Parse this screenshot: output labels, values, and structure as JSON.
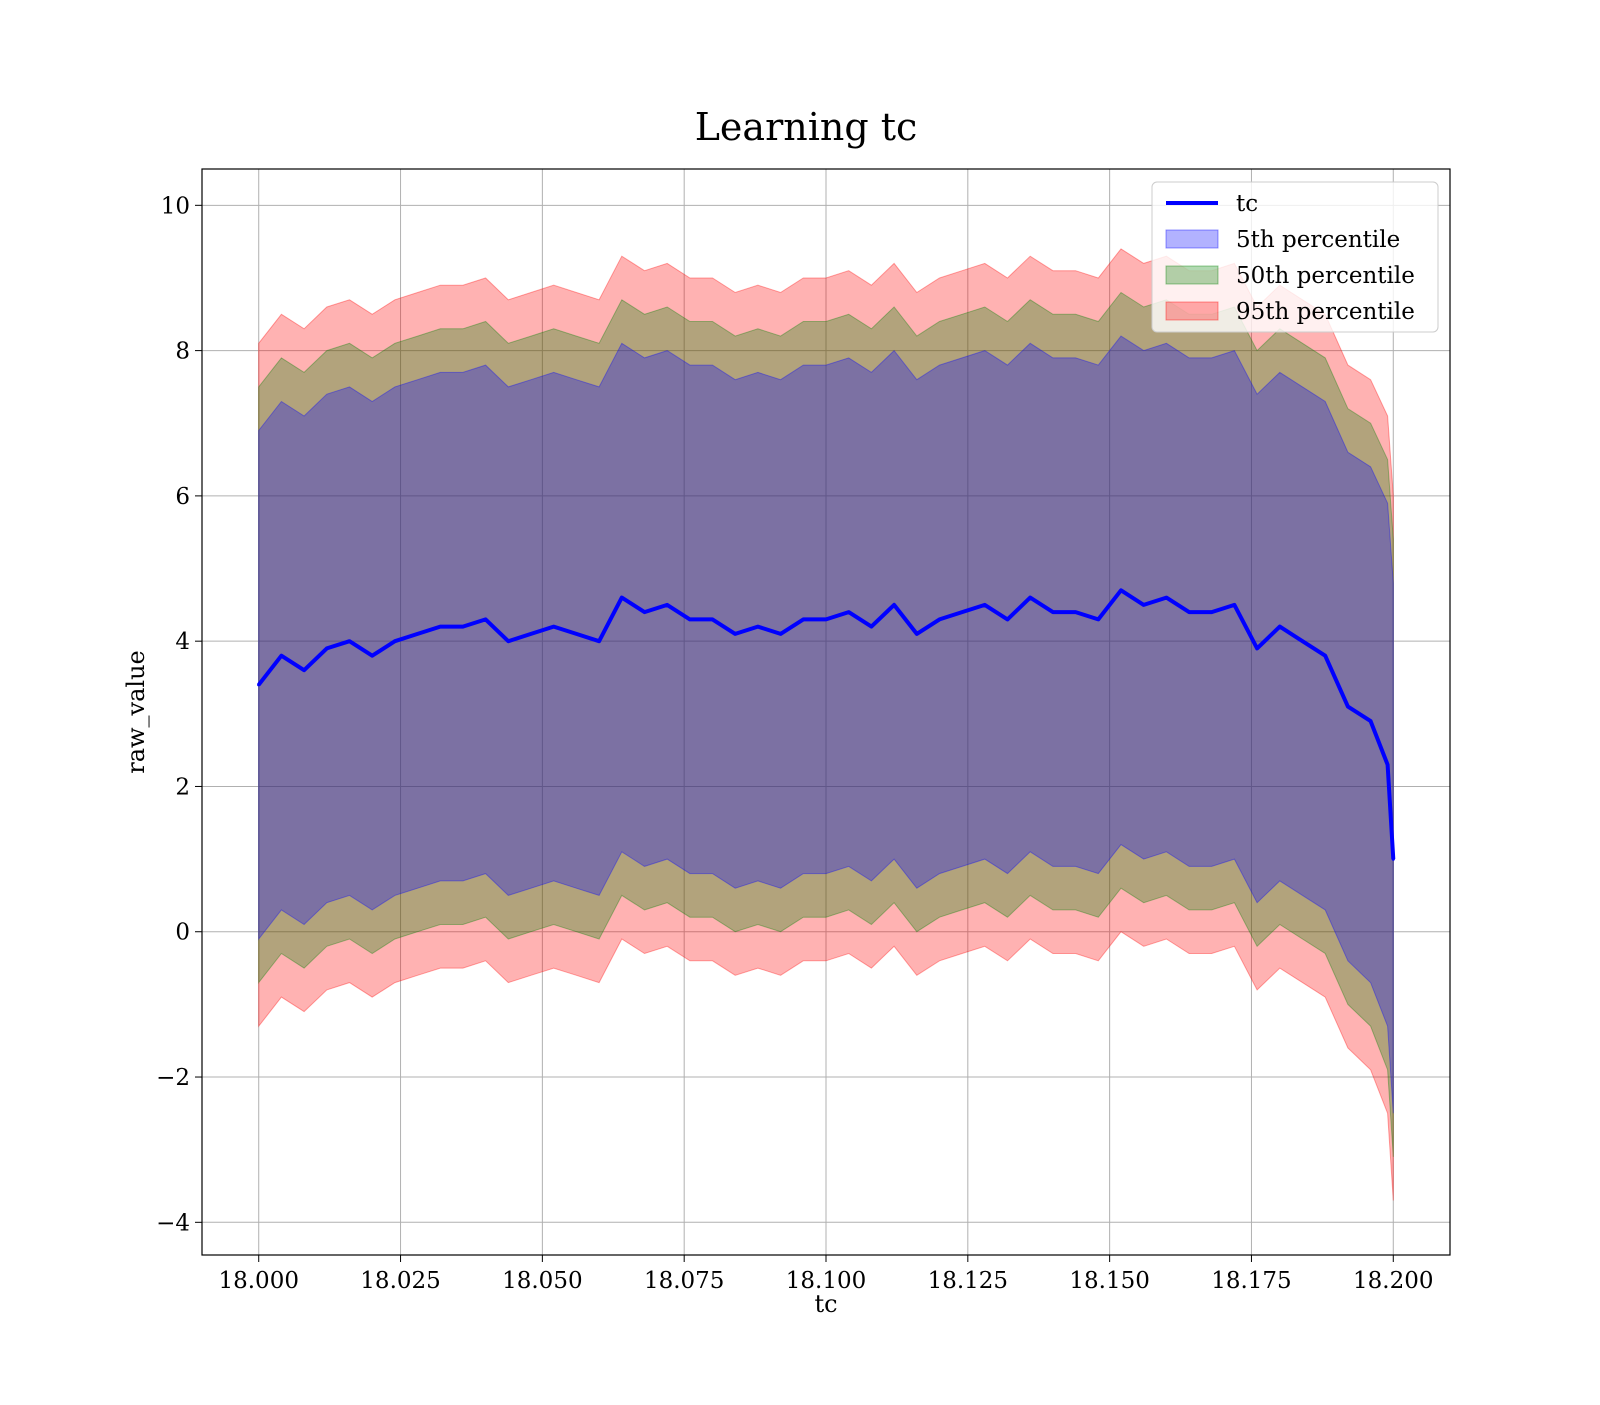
{
  "chart_data": {
    "type": "area",
    "title": "Learning tc",
    "xlabel": "tc",
    "ylabel": "raw_value",
    "xlim": [
      17.99,
      18.21
    ],
    "ylim": [
      -4.45,
      10.5
    ],
    "x_ticks": [
      18.0,
      18.025,
      18.05,
      18.075,
      18.1,
      18.125,
      18.15,
      18.175,
      18.2
    ],
    "x_tick_labels": [
      "18.000",
      "18.025",
      "18.050",
      "18.075",
      "18.100",
      "18.125",
      "18.150",
      "18.175",
      "18.200"
    ],
    "y_ticks": [
      -4,
      -2,
      0,
      2,
      4,
      6,
      8,
      10
    ],
    "y_tick_labels": [
      "−4",
      "−2",
      "0",
      "2",
      "4",
      "6",
      "8",
      "10"
    ],
    "grid": true,
    "legend_position": "top-right",
    "legend": [
      {
        "label": "tc",
        "kind": "line",
        "color": "#0000ff"
      },
      {
        "label": "5th percentile",
        "kind": "patch",
        "color": "#0000ff"
      },
      {
        "label": "50th percentile",
        "kind": "patch",
        "color": "#008000"
      },
      {
        "label": "95th percentile",
        "kind": "patch",
        "color": "#ff0000"
      }
    ],
    "x": [
      18.0,
      18.004,
      18.008,
      18.012,
      18.016,
      18.02,
      18.024,
      18.028,
      18.032,
      18.036,
      18.04,
      18.044,
      18.048,
      18.052,
      18.056,
      18.06,
      18.064,
      18.068,
      18.072,
      18.076,
      18.08,
      18.084,
      18.088,
      18.092,
      18.096,
      18.1,
      18.104,
      18.108,
      18.112,
      18.116,
      18.12,
      18.124,
      18.128,
      18.132,
      18.136,
      18.14,
      18.144,
      18.148,
      18.152,
      18.156,
      18.16,
      18.164,
      18.168,
      18.172,
      18.176,
      18.18,
      18.184,
      18.188,
      18.192,
      18.196,
      18.199,
      18.2
    ],
    "series": [
      {
        "name": "tc",
        "color": "#0000ff",
        "values": [
          3.4,
          3.8,
          3.6,
          3.9,
          4.0,
          3.8,
          4.0,
          4.1,
          4.2,
          4.2,
          4.3,
          4.0,
          4.1,
          4.2,
          4.1,
          4.0,
          4.6,
          4.4,
          4.5,
          4.3,
          4.3,
          4.1,
          4.2,
          4.1,
          4.3,
          4.3,
          4.4,
          4.2,
          4.5,
          4.1,
          4.3,
          4.4,
          4.5,
          4.3,
          4.6,
          4.4,
          4.4,
          4.3,
          4.7,
          4.5,
          4.6,
          4.4,
          4.4,
          4.5,
          3.9,
          4.2,
          4.0,
          3.8,
          3.1,
          2.9,
          2.3,
          1.0
        ]
      },
      {
        "name": "5th percentile",
        "color": "#0000ff",
        "lower": [
          -0.1,
          0.3,
          0.1,
          0.4,
          0.5,
          0.3,
          0.5,
          0.6,
          0.7,
          0.7,
          0.8,
          0.5,
          0.6,
          0.7,
          0.6,
          0.5,
          1.1,
          0.9,
          1.0,
          0.8,
          0.8,
          0.6,
          0.7,
          0.6,
          0.8,
          0.8,
          0.9,
          0.7,
          1.0,
          0.6,
          0.8,
          0.9,
          1.0,
          0.8,
          1.1,
          0.9,
          0.9,
          0.8,
          1.2,
          1.0,
          1.1,
          0.9,
          0.9,
          1.0,
          0.4,
          0.7,
          0.5,
          0.3,
          -0.4,
          -0.7,
          -1.3,
          -2.5
        ],
        "upper": [
          6.9,
          7.3,
          7.1,
          7.4,
          7.5,
          7.3,
          7.5,
          7.6,
          7.7,
          7.7,
          7.8,
          7.5,
          7.6,
          7.7,
          7.6,
          7.5,
          8.1,
          7.9,
          8.0,
          7.8,
          7.8,
          7.6,
          7.7,
          7.6,
          7.8,
          7.8,
          7.9,
          7.7,
          8.0,
          7.6,
          7.8,
          7.9,
          8.0,
          7.8,
          8.1,
          7.9,
          7.9,
          7.8,
          8.2,
          8.0,
          8.1,
          7.9,
          7.9,
          8.0,
          7.4,
          7.7,
          7.5,
          7.3,
          6.6,
          6.4,
          5.9,
          4.8
        ]
      },
      {
        "name": "50th percentile",
        "color": "#008000",
        "lower": [
          -0.7,
          -0.3,
          -0.5,
          -0.2,
          -0.1,
          -0.3,
          -0.1,
          0.0,
          0.1,
          0.1,
          0.2,
          -0.1,
          0.0,
          0.1,
          0.0,
          -0.1,
          0.5,
          0.3,
          0.4,
          0.2,
          0.2,
          0.0,
          0.1,
          0.0,
          0.2,
          0.2,
          0.3,
          0.1,
          0.4,
          0.0,
          0.2,
          0.3,
          0.4,
          0.2,
          0.5,
          0.3,
          0.3,
          0.2,
          0.6,
          0.4,
          0.5,
          0.3,
          0.3,
          0.4,
          -0.2,
          0.1,
          -0.1,
          -0.3,
          -1.0,
          -1.3,
          -1.9,
          -3.1
        ],
        "upper": [
          7.5,
          7.9,
          7.7,
          8.0,
          8.1,
          7.9,
          8.1,
          8.2,
          8.3,
          8.3,
          8.4,
          8.1,
          8.2,
          8.3,
          8.2,
          8.1,
          8.7,
          8.5,
          8.6,
          8.4,
          8.4,
          8.2,
          8.3,
          8.2,
          8.4,
          8.4,
          8.5,
          8.3,
          8.6,
          8.2,
          8.4,
          8.5,
          8.6,
          8.4,
          8.7,
          8.5,
          8.5,
          8.4,
          8.8,
          8.6,
          8.7,
          8.5,
          8.5,
          8.6,
          8.0,
          8.3,
          8.1,
          7.9,
          7.2,
          7.0,
          6.5,
          5.4
        ]
      },
      {
        "name": "95th percentile",
        "color": "#ff0000",
        "lower": [
          -1.3,
          -0.9,
          -1.1,
          -0.8,
          -0.7,
          -0.9,
          -0.7,
          -0.6,
          -0.5,
          -0.5,
          -0.4,
          -0.7,
          -0.6,
          -0.5,
          -0.6,
          -0.7,
          -0.1,
          -0.3,
          -0.2,
          -0.4,
          -0.4,
          -0.6,
          -0.5,
          -0.6,
          -0.4,
          -0.4,
          -0.3,
          -0.5,
          -0.2,
          -0.6,
          -0.4,
          -0.3,
          -0.2,
          -0.4,
          -0.1,
          -0.3,
          -0.3,
          -0.4,
          0.0,
          -0.2,
          -0.1,
          -0.3,
          -0.3,
          -0.2,
          -0.8,
          -0.5,
          -0.7,
          -0.9,
          -1.6,
          -1.9,
          -2.5,
          -3.7
        ],
        "upper": [
          8.1,
          8.5,
          8.3,
          8.6,
          8.7,
          8.5,
          8.7,
          8.8,
          8.9,
          8.9,
          9.0,
          8.7,
          8.8,
          8.9,
          8.8,
          8.7,
          9.3,
          9.1,
          9.2,
          9.0,
          9.0,
          8.8,
          8.9,
          8.8,
          9.0,
          9.0,
          9.1,
          8.9,
          9.2,
          8.8,
          9.0,
          9.1,
          9.2,
          9.0,
          9.3,
          9.1,
          9.1,
          9.0,
          9.4,
          9.2,
          9.3,
          9.1,
          9.1,
          9.2,
          8.6,
          8.9,
          8.7,
          8.5,
          7.8,
          7.6,
          7.1,
          6.0
        ]
      }
    ]
  }
}
